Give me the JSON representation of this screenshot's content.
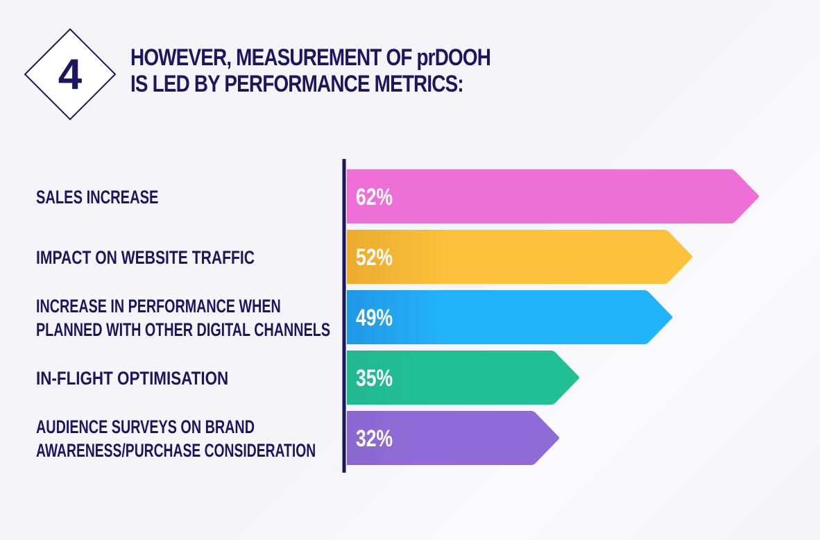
{
  "badge": {
    "number": "4"
  },
  "title": {
    "line1": "HOWEVER, MEASUREMENT OF prDOOH",
    "line2": "IS LED BY PERFORMANCE METRICS:"
  },
  "chart_data": {
    "type": "bar",
    "orientation": "horizontal",
    "categories": [
      [
        "SALES INCREASE"
      ],
      [
        "IMPACT ON WEBSITE TRAFFIC"
      ],
      [
        "INCREASE IN PERFORMANCE WHEN",
        "PLANNED WITH OTHER DIGITAL CHANNELS"
      ],
      [
        "IN-FLIGHT OPTIMISATION"
      ],
      [
        "AUDIENCE SURVEYS ON BRAND",
        "AWARENESS/PURCHASE CONSIDERATION"
      ]
    ],
    "values": [
      62,
      52,
      49,
      35,
      32
    ],
    "value_labels": [
      "62%",
      "52%",
      "49%",
      "35%",
      "32%"
    ],
    "unit": "%",
    "colors": [
      "#ee6fd6",
      "#fdc23c",
      "#22b4fb",
      "#20bf94",
      "#8e6bd6"
    ],
    "shade_colors": [
      "#ee6fd6",
      "#ecab2f",
      "#2197e6",
      "#22b790",
      "#8b67d0"
    ],
    "axis_color": "#1a1660",
    "xlim": [
      0,
      62
    ]
  }
}
